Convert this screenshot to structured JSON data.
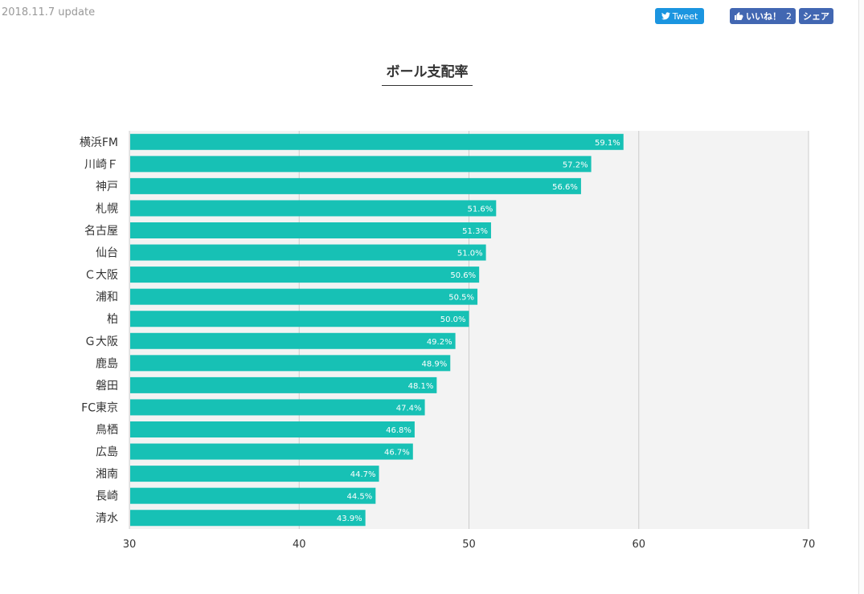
{
  "header": {
    "update_text": "2018.11.7 update",
    "tweet_label": "Tweet",
    "like_label": "いいね！",
    "like_count": "2",
    "share_label": "シェア"
  },
  "colors": {
    "bar": "#17c1b5",
    "plot_bg": "#f3f3f3",
    "grid": "#cccccc",
    "twitter": "#1b95e0",
    "facebook": "#4267b2"
  },
  "chart_data": {
    "type": "bar",
    "orientation": "horizontal",
    "title": "ボール支配率",
    "categories": [
      "横浜FM",
      "川崎Ｆ",
      "神戸",
      "札幌",
      "名古屋",
      "仙台",
      "Ｃ大阪",
      "浦和",
      "柏",
      "Ｇ大阪",
      "鹿島",
      "磐田",
      "FC東京",
      "鳥栖",
      "広島",
      "湘南",
      "長崎",
      "清水"
    ],
    "values": [
      59.1,
      57.2,
      56.6,
      51.6,
      51.3,
      51.0,
      50.6,
      50.5,
      50.0,
      49.2,
      48.9,
      48.1,
      47.4,
      46.8,
      46.7,
      44.7,
      44.5,
      43.9
    ],
    "value_labels": [
      "59.1%",
      "57.2%",
      "56.6%",
      "51.6%",
      "51.3%",
      "51.0%",
      "50.6%",
      "50.5%",
      "50.0%",
      "49.2%",
      "48.9%",
      "48.1%",
      "47.4%",
      "46.8%",
      "46.7%",
      "44.7%",
      "44.5%",
      "43.9%"
    ],
    "xlim": [
      30,
      70
    ],
    "x_ticks": [
      "30",
      "40",
      "50",
      "60",
      "70"
    ],
    "xlabel": "",
    "ylabel": "",
    "grid": true,
    "legend": "none"
  }
}
